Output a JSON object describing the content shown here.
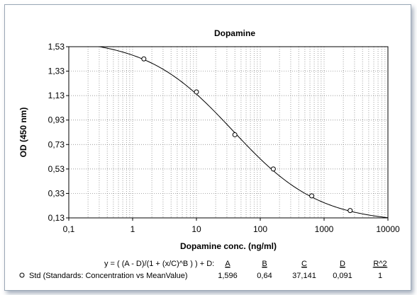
{
  "chart_data": {
    "type": "scatter",
    "title": "Dopamine",
    "xlabel": "Dopamine conc. (ng/ml)",
    "ylabel": "OD (450 nm)",
    "x_scale": "log",
    "xlim": [
      0.1,
      10000
    ],
    "ylim": [
      0.13,
      1.53
    ],
    "x_tick_labels": [
      "0,1",
      "1",
      "10",
      "100",
      "1000",
      "10000"
    ],
    "x_tick_values": [
      0.1,
      1,
      10,
      100,
      1000,
      10000
    ],
    "y_tick_labels": [
      "0,13",
      "0,33",
      "0,53",
      "0,73",
      "0,93",
      "1,13",
      "1,33",
      "1,53"
    ],
    "y_tick_values": [
      0.13,
      0.33,
      0.53,
      0.73,
      0.93,
      1.13,
      1.33,
      1.53
    ],
    "grid": true,
    "series": [
      {
        "name": "Std (Standards: Concentration vs MeanValue)",
        "x": [
          1.5,
          10,
          40,
          160,
          640,
          2560
        ],
        "y": [
          1.43,
          1.16,
          0.81,
          0.53,
          0.31,
          0.19
        ]
      }
    ],
    "fit": {
      "equation": "y = ( (A - D)/(1 + (x/C)^B ) ) + D:",
      "A": 1.596,
      "B": 0.64,
      "C": 37.141,
      "D": 0.091
    },
    "legend_table": {
      "headers": [
        "A",
        "B",
        "C",
        "D",
        "R^2"
      ],
      "values": [
        "1,596",
        "0,64",
        "37,141",
        "0,091",
        "1"
      ]
    }
  }
}
